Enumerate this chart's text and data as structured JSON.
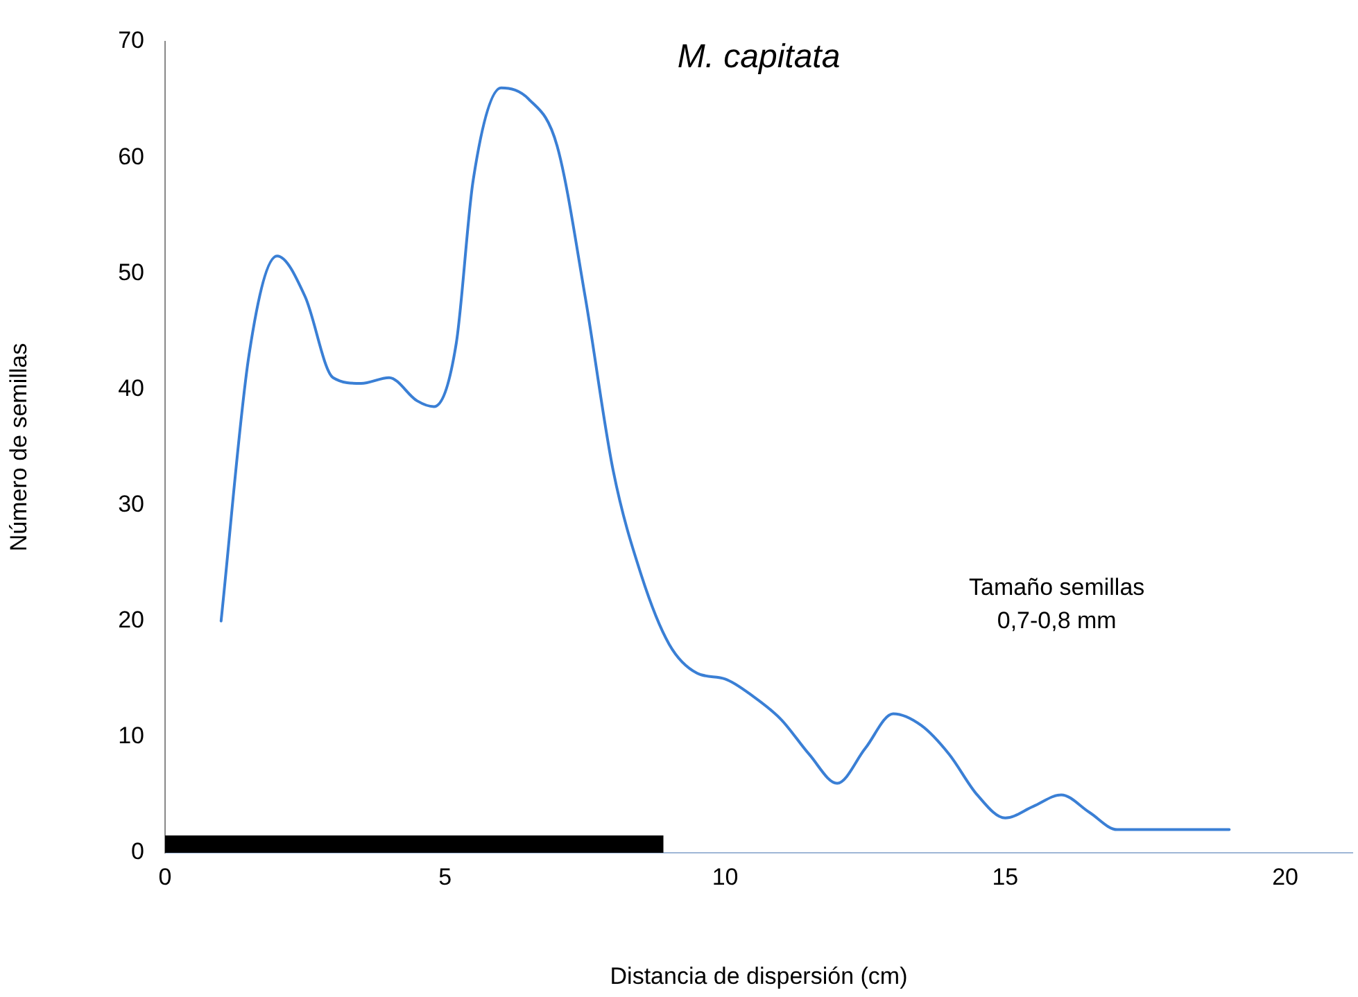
{
  "chart_data": {
    "type": "line",
    "title": "M. capitata",
    "xlabel": "Distancia de dispersión (cm)",
    "ylabel": "Número de semillas",
    "xlim": [
      0,
      21.2
    ],
    "xticks": [
      0,
      5,
      10,
      15,
      20
    ],
    "ylim": [
      0,
      70
    ],
    "yticks": [
      0,
      10,
      20,
      30,
      40,
      50,
      60,
      70
    ],
    "grid": false,
    "legend": false,
    "marker": "none",
    "line_style": "solid",
    "annotations": [
      "Tamaño semillas\n0,7-0,8 mm"
    ],
    "series": [
      {
        "color": "#3a7fd5",
        "x": [
          1,
          1.5,
          2,
          2.5,
          3,
          3.5,
          4,
          4.5,
          4.8,
          5.2,
          5.5,
          6,
          6.5,
          7,
          7.5,
          8,
          8.5,
          9,
          9.5,
          10,
          10.5,
          11,
          11.5,
          12,
          12.5,
          13,
          13.5,
          14,
          14.5,
          15,
          15.5,
          16,
          16.5,
          17,
          18,
          19
        ],
        "values": [
          20,
          43,
          51.5,
          48,
          41,
          40.5,
          41,
          39,
          38.5,
          44,
          58,
          66,
          65,
          61,
          48,
          33,
          24,
          18,
          15.5,
          15,
          13.5,
          11.5,
          8.5,
          6,
          9,
          12,
          11,
          8.5,
          5,
          3,
          4,
          5,
          3.5,
          2,
          2,
          2
        ]
      },
      {
        "type": "area",
        "color": "#000000",
        "x": [
          0,
          8.9
        ],
        "values": [
          1.5,
          1.5
        ]
      }
    ]
  }
}
